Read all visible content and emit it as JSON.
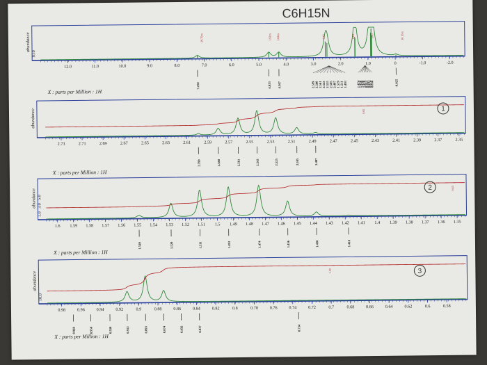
{
  "handwritten_formula": "C6H15N",
  "panel_markers": [
    "1",
    "2",
    "3"
  ],
  "chart_data": [
    {
      "type": "line",
      "ylabel": "abundance",
      "y_ticks": [
        "10.0"
      ],
      "xlabel": "X : parts per Million : 1H",
      "xlim": [
        13.0,
        -2.5
      ],
      "x_ticks": [
        12.0,
        11.0,
        10.0,
        9.0,
        8.0,
        7.0,
        6.0,
        5.0,
        4.0,
        3.0,
        2.0,
        1.0,
        0,
        -1.0,
        -2.0
      ],
      "x_tick_labels": [
        "12.0",
        "11.0",
        "10.0",
        "9.0",
        "8.0",
        "7.0",
        "6.0",
        "5.0",
        "4.0",
        "3.0",
        "2.0",
        "1.0",
        "0",
        "-1.0",
        "-2.0"
      ],
      "peaks": [
        {
          "x": 7.25,
          "h": 0.1
        },
        {
          "x": 4.633,
          "h": 0.18
        },
        {
          "x": 4.267,
          "h": 0.18
        },
        {
          "x": 2.56,
          "h": 0.55
        },
        {
          "x": 2.5,
          "h": 0.5
        },
        {
          "x": 1.48,
          "h": 0.7
        },
        {
          "x": 1.47,
          "h": 0.65
        },
        {
          "x": 0.9,
          "h": 0.85
        },
        {
          "x": 0.88,
          "h": 1.0
        },
        {
          "x": 0.86,
          "h": 0.75
        },
        {
          "x": -0.025,
          "h": 0.05
        }
      ],
      "peak_labels": [
        {
          "x": 7.25,
          "label": "7.250"
        },
        {
          "x": 4.633,
          "label": "4.633"
        },
        {
          "x": 4.267,
          "label": "4.267"
        },
        {
          "x": -0.025,
          "label": "-0.025"
        }
      ],
      "peak_label_group_a": {
        "label_x_start": 3.02,
        "label_x_end": 1.84,
        "labels": [
          "2.599",
          "2.580",
          "2.561",
          "2.543",
          "2.525",
          "2.505",
          "2.487",
          "1.529",
          "1.511",
          "1.493"
        ]
      },
      "peak_label_group_b": {
        "label_x_start": 1.36,
        "label_x_end": 0.86,
        "labels": [
          "1.474",
          "1.456",
          "1.438",
          "1.418",
          "0.912",
          "0.893",
          "0.874",
          "0.856"
        ]
      },
      "integral_labels": [
        {
          "x": 7.05,
          "label": "29.70m"
        },
        {
          "x": 4.55,
          "label": "1.92m"
        },
        {
          "x": 4.25,
          "label": "1.84m"
        },
        {
          "x": 2.58,
          "label": "0.65"
        },
        {
          "x": 1.5,
          "label": "0.63"
        },
        {
          "x": 0.8,
          "label": "1.00"
        },
        {
          "x": -0.3,
          "label": "30.15m"
        }
      ]
    },
    {
      "type": "line",
      "ylabel": "abundance",
      "y_ticks": [],
      "xlabel": "X : parts per Million : 1H",
      "xlim": [
        2.745,
        2.345
      ],
      "x_ticks": [
        2.73,
        2.71,
        2.69,
        2.67,
        2.65,
        2.63,
        2.61,
        2.59,
        2.57,
        2.55,
        2.53,
        2.51,
        2.49,
        2.47,
        2.45,
        2.43,
        2.41,
        2.39,
        2.37,
        2.35
      ],
      "x_tick_labels": [
        "2.73",
        "2.71",
        "2.69",
        "2.67",
        "2.65",
        "2.63",
        "2.61",
        "2.59",
        "2.57",
        "2.55",
        "2.53",
        "2.51",
        "2.49",
        "2.47",
        "2.45",
        "2.43",
        "2.41",
        "2.39",
        "2.37",
        "2.35"
      ],
      "peaks": [
        {
          "x": 2.599,
          "h": 0.05
        },
        {
          "x": 2.58,
          "h": 0.22
        },
        {
          "x": 2.561,
          "h": 0.55
        },
        {
          "x": 2.543,
          "h": 0.8
        },
        {
          "x": 2.525,
          "h": 0.55
        },
        {
          "x": 2.505,
          "h": 0.22
        },
        {
          "x": 2.487,
          "h": 0.05
        }
      ],
      "peak_labels": [
        {
          "x": 2.599,
          "label": "2.599"
        },
        {
          "x": 2.58,
          "label": "2.580"
        },
        {
          "x": 2.561,
          "label": "2.561"
        },
        {
          "x": 2.543,
          "label": "2.543"
        },
        {
          "x": 2.525,
          "label": "2.525"
        },
        {
          "x": 2.505,
          "label": "2.505"
        },
        {
          "x": 2.487,
          "label": "2.487"
        }
      ],
      "integral_labels": [
        {
          "x": 2.44,
          "label": "0.65"
        }
      ]
    },
    {
      "type": "line",
      "ylabel": "abundance",
      "y_ticks": [
        "1.0",
        "3.0",
        "5.0"
      ],
      "xlabel": "X : parts per Million : 1H",
      "xlim": [
        1.607,
        1.345
      ],
      "x_ticks": [
        1.6,
        1.59,
        1.58,
        1.57,
        1.56,
        1.55,
        1.54,
        1.53,
        1.52,
        1.51,
        1.5,
        1.49,
        1.48,
        1.47,
        1.46,
        1.45,
        1.44,
        1.43,
        1.42,
        1.41,
        1.4,
        1.39,
        1.38,
        1.37,
        1.36,
        1.35
      ],
      "x_tick_labels": [
        "1.6",
        "1.59",
        "1.58",
        "1.57",
        "1.56",
        "1.55",
        "1.54",
        "1.53",
        "1.52",
        "1.51",
        "1.5",
        "1.49",
        "1.48",
        "1.47",
        "1.46",
        "1.45",
        "1.44",
        "1.43",
        "1.42",
        "1.41",
        "1.4",
        "1.39",
        "1.38",
        "1.37",
        "1.36",
        "1.35"
      ],
      "peaks": [
        {
          "x": 1.549,
          "h": 0.08
        },
        {
          "x": 1.529,
          "h": 0.42
        },
        {
          "x": 1.511,
          "h": 0.8
        },
        {
          "x": 1.493,
          "h": 0.88
        },
        {
          "x": 1.474,
          "h": 0.92
        },
        {
          "x": 1.456,
          "h": 0.45
        },
        {
          "x": 1.438,
          "h": 0.12
        },
        {
          "x": 1.418,
          "h": 0.02
        }
      ],
      "peak_labels": [
        {
          "x": 1.549,
          "label": "1.549"
        },
        {
          "x": 1.529,
          "label": "1.529"
        },
        {
          "x": 1.511,
          "label": "1.511"
        },
        {
          "x": 1.493,
          "label": "1.493"
        },
        {
          "x": 1.474,
          "label": "1.474"
        },
        {
          "x": 1.456,
          "label": "1.456"
        },
        {
          "x": 1.438,
          "label": "1.438"
        },
        {
          "x": 1.418,
          "label": "1.418"
        }
      ],
      "integral_labels": [
        {
          "x": 1.352,
          "label": "0.63"
        }
      ]
    },
    {
      "type": "line",
      "ylabel": "abundance",
      "y_ticks": [
        "10.0"
      ],
      "xlabel": "X : parts per Million : 1H",
      "xlim": [
        0.995,
        0.56
      ],
      "x_ticks": [
        0.98,
        0.96,
        0.94,
        0.92,
        0.9,
        0.88,
        0.86,
        0.84,
        0.82,
        0.8,
        0.78,
        0.76,
        0.74,
        0.72,
        0.7,
        0.68,
        0.66,
        0.64,
        0.62,
        0.6,
        0.58
      ],
      "x_tick_labels": [
        "0.98",
        "0.96",
        "0.94",
        "0.92",
        "0.9",
        "0.88",
        "0.86",
        "0.84",
        "0.82",
        "0.8",
        "0.78",
        "0.76",
        "0.74",
        "0.72",
        "0.7",
        "0.68",
        "0.66",
        "0.64",
        "0.62",
        "0.6",
        "0.58"
      ],
      "peaks": [
        {
          "x": 0.912,
          "h": 0.28
        },
        {
          "x": 0.893,
          "h": 0.7
        },
        {
          "x": 0.874,
          "h": 0.3
        }
      ],
      "peak_labels": [
        {
          "x": 0.968,
          "label": "0.968"
        },
        {
          "x": 0.95,
          "label": "0.950"
        },
        {
          "x": 0.93,
          "label": "0.930"
        },
        {
          "x": 0.912,
          "label": "0.912"
        },
        {
          "x": 0.893,
          "label": "0.893"
        },
        {
          "x": 0.874,
          "label": "0.874"
        },
        {
          "x": 0.856,
          "label": "0.856"
        },
        {
          "x": 0.837,
          "label": "0.837"
        },
        {
          "x": 0.734,
          "label": "0.734"
        }
      ],
      "integral_labels": [
        {
          "x": 0.7,
          "label": "1.00"
        }
      ]
    }
  ]
}
